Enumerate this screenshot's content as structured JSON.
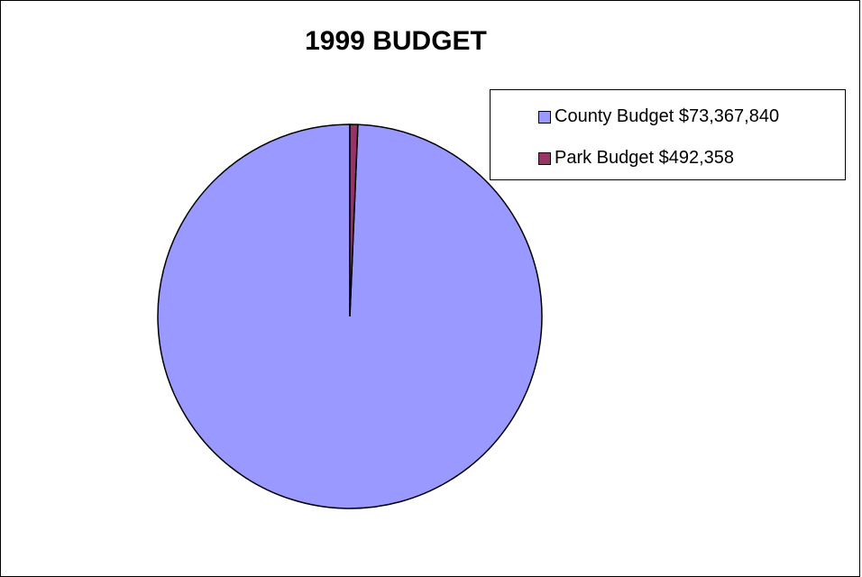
{
  "chart_data": {
    "type": "pie",
    "title": "1999 BUDGET",
    "categories": [
      "County Budget $73,367,840",
      "Park Budget $492,358"
    ],
    "values": [
      73367840,
      492358
    ],
    "colors": [
      "#9999ff",
      "#993366"
    ],
    "legend_position": "top-right"
  }
}
